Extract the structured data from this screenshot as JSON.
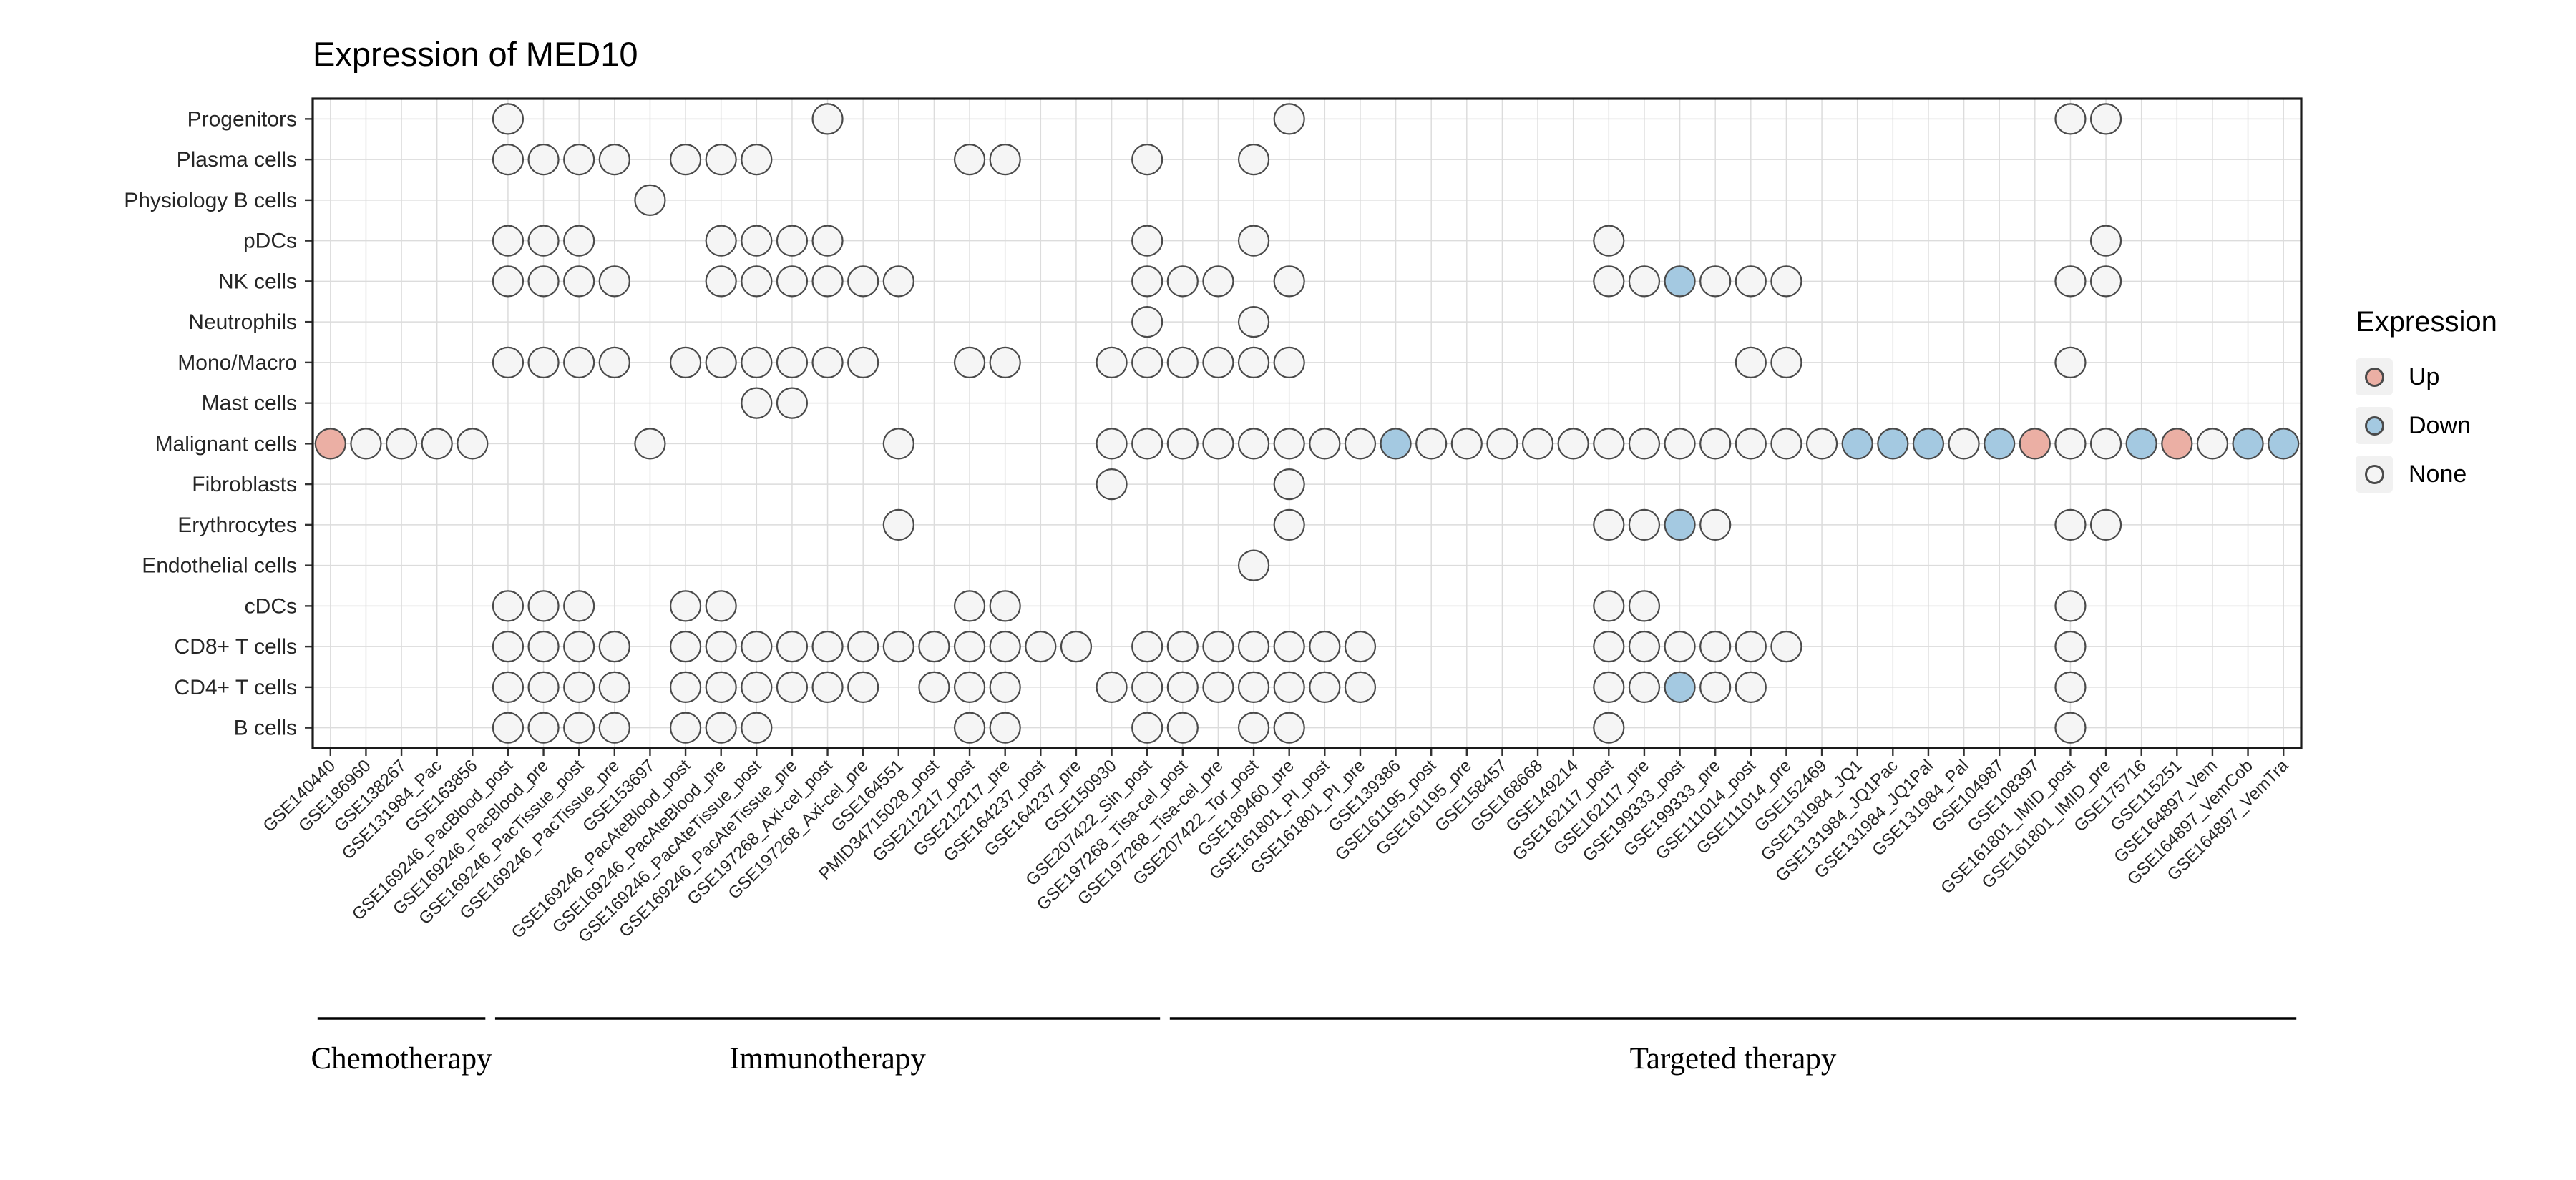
{
  "title": "Expression of MED10",
  "legend": {
    "title": "Expression",
    "items": [
      {
        "label": "Up",
        "color": "#EBAFA4"
      },
      {
        "label": "Down",
        "color": "#A4C9E1"
      },
      {
        "label": "None",
        "color": "#F5F5F5"
      }
    ]
  },
  "chart_data": {
    "type": "heatmap",
    "mark": "dot",
    "title": "Expression of MED10",
    "xlabel": "",
    "ylabel": "",
    "x_tick_rotation": 45,
    "grid": true,
    "legend_position": "right",
    "rows": [
      "Progenitors",
      "Plasma cells",
      "Physiology B cells",
      "pDCs",
      "NK cells",
      "Neutrophils",
      "Mono/Macro",
      "Mast cells",
      "Malignant cells",
      "Fibroblasts",
      "Erythrocytes",
      "Endothelial cells",
      "cDCs",
      "CD8+ T cells",
      "CD4+ T cells",
      "B cells"
    ],
    "columns": [
      "GSE140440",
      "GSE186960",
      "GSE138267",
      "GSE131984_Pac",
      "GSE163856",
      "GSE169246_PacBlood_post",
      "GSE169246_PacBlood_pre",
      "GSE169246_PacTissue_post",
      "GSE169246_PacTissue_pre",
      "GSE153697",
      "GSE169246_PacAteBlood_post",
      "GSE169246_PacAteBlood_pre",
      "GSE169246_PacAteTissue_post",
      "GSE169246_PacAteTissue_pre",
      "GSE197268_Axi-cel_post",
      "GSE197268_Axi-cel_pre",
      "GSE164551",
      "PMID34715028_post",
      "GSE212217_post",
      "GSE212217_pre",
      "GSE164237_post",
      "GSE164237_pre",
      "GSE150930",
      "GSE207422_Sin_post",
      "GSE197268_Tisa-cel_post",
      "GSE197268_Tisa-cel_pre",
      "GSE207422_Tor_post",
      "GSE189460_pre",
      "GSE161801_PI_post",
      "GSE161801_PI_pre",
      "GSE139386",
      "GSE161195_post",
      "GSE161195_pre",
      "GSE158457",
      "GSE168668",
      "GSE149214",
      "GSE162117_post",
      "GSE162117_pre",
      "GSE199333_post",
      "GSE199333_pre",
      "GSE111014_post",
      "GSE111014_pre",
      "GSE152469",
      "GSE131984_JQ1",
      "GSE131984_JQ1Pac",
      "GSE131984_JQ1Pal",
      "GSE131984_Pal",
      "GSE104987",
      "GSE108397",
      "GSE161801_IMID_post",
      "GSE161801_IMID_pre",
      "GSE175716",
      "GSE115251",
      "GSE164897_Vem",
      "GSE164897_VemCob",
      "GSE164897_VemTra"
    ],
    "groups": [
      {
        "label": "Chemotherapy",
        "start": 1,
        "end": 5
      },
      {
        "label": "Immunotherapy",
        "start": 6,
        "end": 24
      },
      {
        "label": "Targeted therapy",
        "start": 25,
        "end": 56
      }
    ],
    "dots": [
      {
        "row": "Progenitors",
        "none": [
          6,
          15,
          28,
          50,
          51
        ]
      },
      {
        "row": "Plasma cells",
        "none": [
          6,
          7,
          8,
          9,
          11,
          12,
          13,
          19,
          20,
          24,
          27
        ]
      },
      {
        "row": "Physiology B cells",
        "none": [
          10
        ]
      },
      {
        "row": "pDCs",
        "none": [
          6,
          7,
          8,
          12,
          13,
          14,
          15,
          24,
          27,
          37,
          51
        ]
      },
      {
        "row": "NK cells",
        "none": [
          6,
          7,
          8,
          9,
          12,
          13,
          14,
          15,
          16,
          17,
          24,
          25,
          26,
          28,
          37,
          38,
          40,
          41,
          42,
          50,
          51
        ],
        "down": [
          39
        ]
      },
      {
        "row": "Neutrophils",
        "none": [
          24,
          27
        ]
      },
      {
        "row": "Mono/Macro",
        "none": [
          6,
          7,
          8,
          9,
          11,
          12,
          13,
          14,
          15,
          16,
          19,
          20,
          23,
          24,
          25,
          26,
          27,
          28,
          41,
          42,
          50
        ]
      },
      {
        "row": "Mast cells",
        "none": [
          13,
          14
        ]
      },
      {
        "row": "Malignant cells",
        "up": [
          1,
          49,
          53
        ],
        "down": [
          31,
          44,
          45,
          46,
          48,
          52,
          55,
          56
        ],
        "none": [
          2,
          3,
          4,
          5,
          10,
          17,
          23,
          24,
          25,
          26,
          27,
          28,
          29,
          30,
          32,
          33,
          34,
          35,
          36,
          37,
          38,
          39,
          40,
          41,
          42,
          43,
          47,
          50,
          51,
          54
        ]
      },
      {
        "row": "Fibroblasts",
        "none": [
          23,
          28
        ]
      },
      {
        "row": "Erythrocytes",
        "none": [
          17,
          28,
          37,
          38,
          40,
          50,
          51
        ],
        "down": [
          39
        ]
      },
      {
        "row": "Endothelial cells",
        "none": [
          27
        ]
      },
      {
        "row": "cDCs",
        "none": [
          6,
          7,
          8,
          11,
          12,
          19,
          20,
          37,
          38,
          50
        ]
      },
      {
        "row": "CD8+ T cells",
        "none": [
          6,
          7,
          8,
          9,
          11,
          12,
          13,
          14,
          15,
          16,
          17,
          18,
          19,
          20,
          21,
          22,
          24,
          25,
          26,
          27,
          28,
          29,
          30,
          37,
          38,
          39,
          40,
          41,
          42,
          50
        ]
      },
      {
        "row": "CD4+ T cells",
        "none": [
          6,
          7,
          8,
          9,
          11,
          12,
          13,
          14,
          15,
          16,
          18,
          19,
          20,
          23,
          24,
          25,
          26,
          27,
          28,
          29,
          30,
          37,
          38,
          40,
          41,
          50
        ],
        "down": [
          39
        ]
      },
      {
        "row": "B cells",
        "none": [
          6,
          7,
          8,
          9,
          11,
          12,
          13,
          19,
          20,
          24,
          25,
          27,
          28,
          37,
          50
        ]
      }
    ],
    "style": {
      "panel_border_color": "#1a1a1a",
      "grid_color": "#dcdcdc",
      "dot_stroke": "#4a4a4a",
      "up_color": "#EBAFA4",
      "down_color": "#A4C9E1",
      "none_color": "#F5F5F5"
    }
  }
}
